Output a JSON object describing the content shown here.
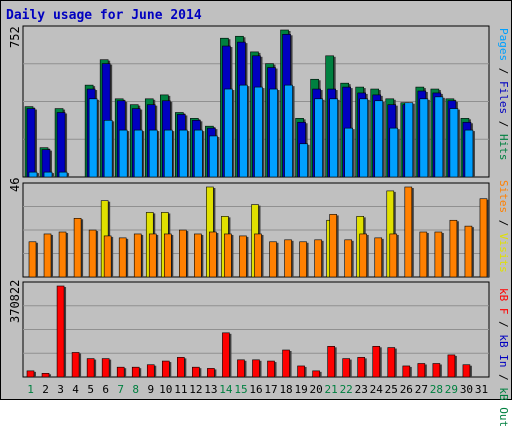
{
  "title": "Daily usage for June 2014",
  "panels": {
    "top": {
      "ymax_label": "752",
      "legend": [
        {
          "text": "Pages",
          "color": "#00a0ff"
        },
        {
          "text": " / ",
          "color": "#000000"
        },
        {
          "text": "Files",
          "color": "#0000c0"
        },
        {
          "text": " / ",
          "color": "#000000"
        },
        {
          "text": "Hits",
          "color": "#008040"
        }
      ]
    },
    "mid": {
      "ymax_label": "46",
      "legend": [
        {
          "text": "Sites",
          "color": "#ff8000"
        },
        {
          "text": " / ",
          "color": "#000000"
        },
        {
          "text": "Visits",
          "color": "#e0e000"
        }
      ]
    },
    "bot": {
      "ymax_label": "370822",
      "legend": [
        {
          "text": "kB F",
          "color": "#ff0000"
        },
        {
          "text": " / ",
          "color": "#000000"
        },
        {
          "text": "kB In",
          "color": "#0000c0"
        },
        {
          "text": " / ",
          "color": "#000000"
        },
        {
          "text": "kB Out",
          "color": "#008040"
        }
      ]
    }
  },
  "chart_data": {
    "type": "bar",
    "days": [
      "1",
      "2",
      "3",
      "4",
      "5",
      "6",
      "7",
      "8",
      "9",
      "10",
      "11",
      "12",
      "13",
      "14",
      "15",
      "16",
      "17",
      "18",
      "19",
      "20",
      "21",
      "22",
      "23",
      "24",
      "25",
      "26",
      "27",
      "28",
      "29",
      "30",
      "31"
    ],
    "weekend_days": [
      "1",
      "7",
      "8",
      "14",
      "15",
      "21",
      "22",
      "28",
      "29"
    ],
    "colors": {
      "hits": "#008040",
      "files": "#0000c0",
      "pages": "#00a0ff",
      "visits": "#e0e000",
      "sites": "#ff8000",
      "kbytes": "#ff0000"
    },
    "top_ymax": 752,
    "hits": [
      360,
      150,
      350,
      0,
      470,
      600,
      400,
      370,
      400,
      420,
      330,
      300,
      260,
      710,
      720,
      640,
      580,
      752,
      300,
      500,
      620,
      480,
      460,
      450,
      400,
      380,
      460,
      450,
      400,
      300,
      0
    ],
    "files": [
      350,
      140,
      330,
      0,
      450,
      580,
      390,
      350,
      370,
      390,
      320,
      290,
      250,
      670,
      690,
      620,
      560,
      730,
      280,
      450,
      450,
      460,
      430,
      420,
      370,
      370,
      440,
      430,
      390,
      280,
      0
    ],
    "pages": [
      25,
      25,
      25,
      0,
      400,
      290,
      240,
      240,
      240,
      240,
      240,
      240,
      210,
      450,
      470,
      460,
      450,
      470,
      170,
      400,
      400,
      250,
      400,
      390,
      250,
      380,
      400,
      410,
      350,
      240,
      0
    ],
    "mid_ymax": 46,
    "visits": [
      0,
      0,
      0,
      0,
      0,
      39,
      0,
      0,
      33,
      33,
      0,
      0,
      46,
      31,
      0,
      37,
      0,
      0,
      0,
      0,
      29,
      0,
      31,
      0,
      44,
      0,
      0,
      0,
      0,
      0,
      0
    ],
    "sites": [
      18,
      22,
      23,
      30,
      24,
      21,
      20,
      22,
      22,
      22,
      24,
      22,
      23,
      22,
      21,
      22,
      18,
      19,
      18,
      19,
      32,
      19,
      22,
      20,
      22,
      46,
      23,
      23,
      29,
      26,
      40
    ],
    "bot_ymax": 370822,
    "kbytes": [
      25000,
      15000,
      370822,
      100000,
      75000,
      75000,
      40000,
      40000,
      50000,
      65000,
      80000,
      40000,
      35000,
      180000,
      70000,
      70000,
      65000,
      110000,
      45000,
      25000,
      125000,
      75000,
      80000,
      125000,
      120000,
      45000,
      55000,
      55000,
      90000,
      50000,
      0
    ]
  }
}
